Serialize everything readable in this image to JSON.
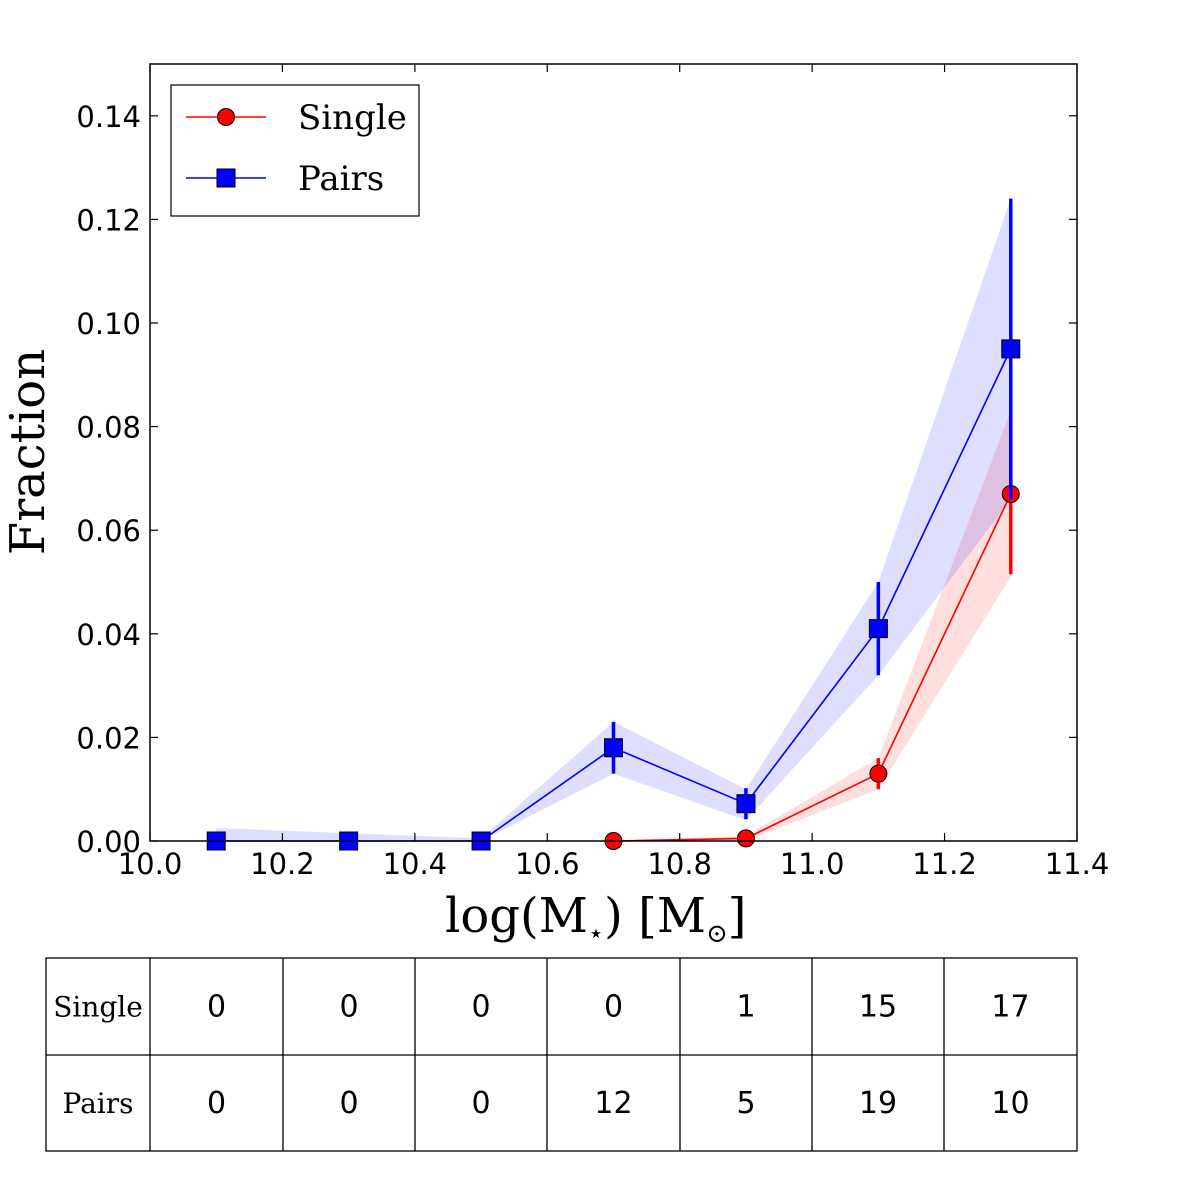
{
  "chart_data": {
    "type": "line",
    "title": "",
    "xlabel": "log(M",
    "xlabel_subscript": "⋆",
    "xlabel_unit_open": ") [M",
    "xlabel_unit_subscript": "⊙",
    "xlabel_unit_close": "]",
    "ylabel": "Fraction",
    "xlim": [
      10.0,
      11.4
    ],
    "ylim": [
      0.0,
      0.15
    ],
    "xticks": [
      "10.0",
      "10.2",
      "10.4",
      "10.6",
      "10.8",
      "11.0",
      "11.2",
      "11.4"
    ],
    "yticks": [
      "0.00",
      "0.02",
      "0.04",
      "0.06",
      "0.08",
      "0.10",
      "0.12",
      "0.14"
    ],
    "grid": false,
    "legend_position": "top-left",
    "series": [
      {
        "name": "Single",
        "color": "#ff0000",
        "band_color": "#ff0000",
        "marker": "circle",
        "x": [
          10.7,
          10.9,
          11.1,
          11.3
        ],
        "y": [
          0.0,
          0.0005,
          0.013,
          0.067
        ],
        "err": [
          0.0,
          0.0005,
          0.003,
          0.0155
        ],
        "band_low": [
          0.0,
          0.0,
          0.01,
          0.051
        ],
        "band_high": [
          0.0,
          0.001,
          0.016,
          0.083
        ]
      },
      {
        "name": "Pairs",
        "color": "#0000ff",
        "band_color": "#0000ff",
        "marker": "square",
        "x": [
          10.1,
          10.3,
          10.5,
          10.7,
          10.9,
          11.1,
          11.3
        ],
        "y": [
          0.0,
          0.0,
          0.0,
          0.018,
          0.0072,
          0.041,
          0.095
        ],
        "err": [
          0.0015,
          0.0,
          0.0,
          0.005,
          0.003,
          0.009,
          0.029
        ],
        "band_low": [
          0.0,
          0.0,
          0.0,
          0.013,
          0.004,
          0.032,
          0.066
        ],
        "band_high": [
          0.0025,
          0.0015,
          0.0005,
          0.023,
          0.01,
          0.05,
          0.124
        ]
      }
    ]
  },
  "table": {
    "rows": [
      {
        "label": "Single",
        "values": [
          "0",
          "0",
          "0",
          "0",
          "1",
          "15",
          "17"
        ]
      },
      {
        "label": "Pairs",
        "values": [
          "0",
          "0",
          "0",
          "12",
          "5",
          "19",
          "10"
        ]
      }
    ]
  }
}
